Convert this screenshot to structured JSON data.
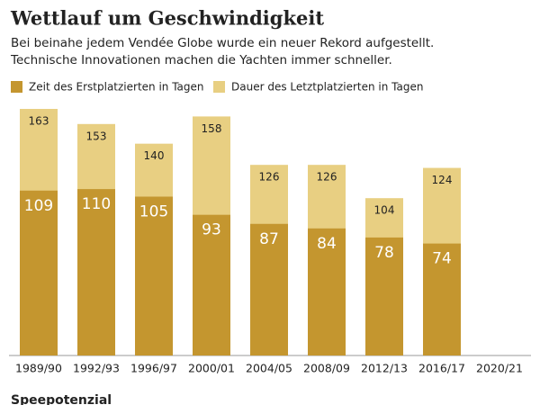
{
  "chart_data": {
    "type": "bar",
    "overlap": true,
    "title": "Wettlauf um Geschwindigkeit",
    "subtitle": [
      "Bei beinahe jedem Vendée Globe wurde ein neuer Rekord aufgestellt.",
      "Technische Innovationen machen die Yachten immer schneller."
    ],
    "footer": "Speepotenzial",
    "categories": [
      "1989/90",
      "1992/93",
      "1996/97",
      "2000/01",
      "2004/05",
      "2008/09",
      "2012/13",
      "2016/17",
      "2020/21"
    ],
    "series": [
      {
        "name": "Dauer des Letztplatzierten in Tagen",
        "color": "#e8cf82",
        "values": [
          163,
          153,
          140,
          158,
          126,
          126,
          104,
          124,
          null
        ]
      },
      {
        "name": "Zeit des Erstplatzierten in Tagen",
        "color": "#c4962f",
        "values": [
          109,
          110,
          105,
          93,
          87,
          84,
          78,
          74,
          null
        ]
      }
    ],
    "legend_order": [
      1,
      0
    ],
    "ylim": [
      0,
      163
    ]
  }
}
